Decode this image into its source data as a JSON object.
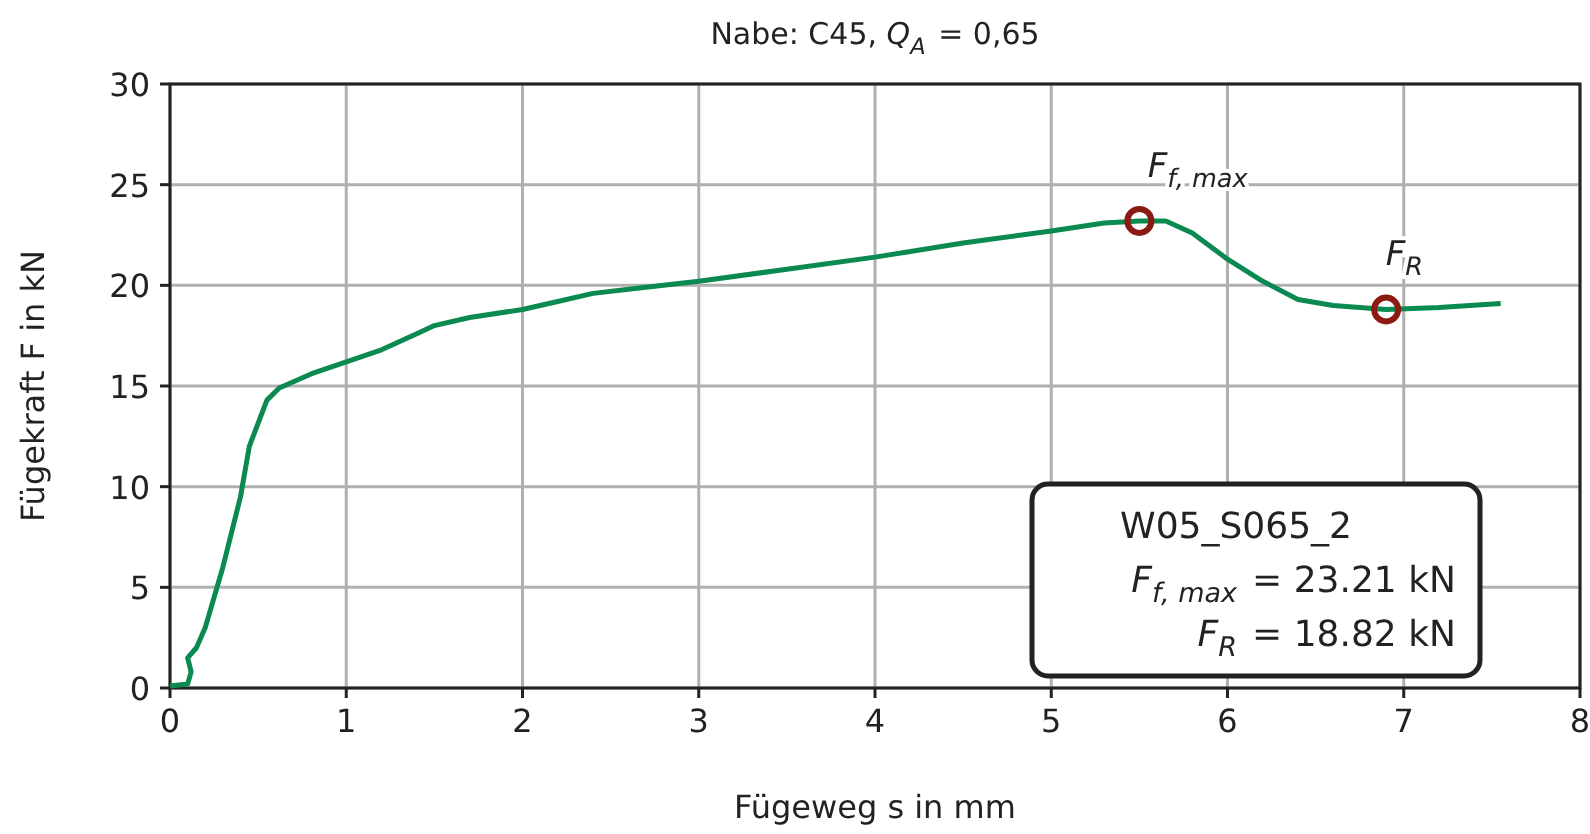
{
  "chart_data": {
    "type": "line",
    "title": "Nabe: C45, Q$_{A}$ = 0,65",
    "xlabel": "Fügeweg s in mm",
    "ylabel": "Fügekraft F in kN",
    "xlim": [
      0,
      8
    ],
    "xticks": [
      0,
      1,
      2,
      3,
      4,
      5,
      6,
      7,
      8
    ],
    "ylim": [
      0,
      30
    ],
    "yticks": [
      0,
      5,
      10,
      15,
      20,
      25,
      30
    ],
    "grid": true,
    "series": [
      {
        "color": "#0a8a50",
        "marker": "none",
        "x": [
          0,
          0.1,
          0.12,
          0.1,
          0.15,
          0.2,
          0.3,
          0.4,
          0.45,
          0.55,
          0.62,
          0.8,
          1.0,
          1.2,
          1.4,
          1.5,
          1.7,
          2.0,
          2.2,
          2.4,
          2.7,
          3.0,
          3.5,
          4.0,
          4.5,
          5.0,
          5.3,
          5.5,
          5.65,
          5.8,
          6.0,
          6.2,
          6.4,
          6.6,
          6.9,
          7.2,
          7.55
        ],
        "values": [
          0.1,
          0.2,
          0.8,
          1.5,
          2,
          3,
          6,
          9.5,
          12,
          14.3,
          14.9,
          15.6,
          16.2,
          16.8,
          17.6,
          18.0,
          18.4,
          18.8,
          19.2,
          19.6,
          19.9,
          20.2,
          20.8,
          21.4,
          22.1,
          22.7,
          23.1,
          23.2,
          23.2,
          22.6,
          21.3,
          20.2,
          19.3,
          19.0,
          18.8,
          18.9,
          19.1
        ]
      },
      {
        "type": "scatter",
        "color": "#8b1a12",
        "marker": "circle",
        "x": [
          5.5,
          6.9
        ],
        "values": [
          23.2,
          18.8
        ]
      }
    ],
    "annotations": [
      {
        "text": "F$_{f, max}$",
        "x": 5.5,
        "y": 23.2
      },
      {
        "text": "F$_{R}$",
        "x": 6.9,
        "y": 18.8
      },
      "W05_S065_2",
      "F$_{f, max}$ = 23.21 kN",
      "F$_{R}$ = 18.82 kN"
    ]
  }
}
